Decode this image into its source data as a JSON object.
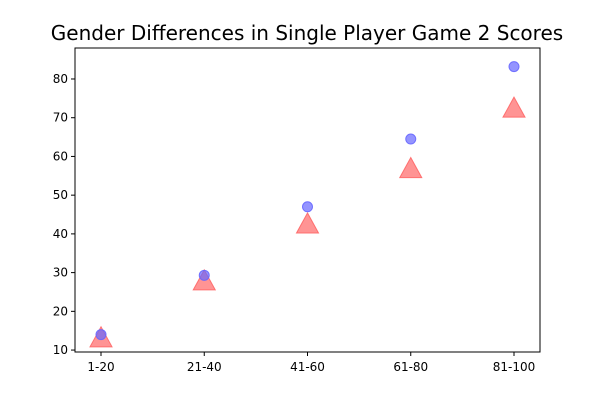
{
  "chart_data": {
    "type": "scatter",
    "title": "Gender Differences in Single Player Game 2 Scores",
    "xlabel": "",
    "ylabel": "",
    "categories": [
      "1-20",
      "21-40",
      "41-60",
      "61-80",
      "81-100"
    ],
    "ylim": [
      9.5,
      88
    ],
    "yticks": [
      10,
      20,
      30,
      40,
      50,
      60,
      70,
      80
    ],
    "grid": false,
    "legend": "none",
    "series": [
      {
        "marker": "triangle",
        "color": "#ff6666",
        "values": [
          12.8,
          27.5,
          42.2,
          56.5,
          72.1
        ]
      },
      {
        "marker": "circle",
        "color": "#6666ff",
        "values": [
          14.0,
          29.3,
          47.0,
          64.5,
          83.2
        ]
      }
    ]
  }
}
